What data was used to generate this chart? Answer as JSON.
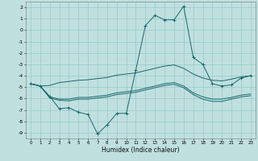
{
  "title": "",
  "xlabel": "Humidex (Indice chaleur)",
  "bg_color": "#c0e0e0",
  "grid_color": "#98c8c8",
  "line_color": "#1a6868",
  "xlim": [
    -0.5,
    23.5
  ],
  "ylim": [
    -9.5,
    2.5
  ],
  "yticks": [
    2,
    1,
    0,
    -1,
    -2,
    -3,
    -4,
    -5,
    -6,
    -7,
    -8,
    -9
  ],
  "xticks": [
    0,
    1,
    2,
    3,
    4,
    5,
    6,
    7,
    8,
    9,
    10,
    11,
    12,
    13,
    14,
    15,
    16,
    17,
    18,
    19,
    20,
    21,
    22,
    23
  ],
  "line1_x": [
    0,
    1,
    2,
    3,
    4,
    5,
    6,
    7,
    8,
    9,
    10,
    11,
    12,
    13,
    14,
    15,
    16,
    17,
    18,
    19,
    20,
    21,
    22,
    23
  ],
  "line1_y": [
    -4.7,
    -4.9,
    -4.85,
    -4.6,
    -4.5,
    -4.4,
    -4.35,
    -4.25,
    -4.15,
    -3.95,
    -3.85,
    -3.75,
    -3.55,
    -3.35,
    -3.15,
    -3.05,
    -3.35,
    -3.85,
    -4.2,
    -4.4,
    -4.45,
    -4.3,
    -4.1,
    -4.0
  ],
  "line2_x": [
    0,
    1,
    2,
    3,
    4,
    5,
    6,
    7,
    8,
    9,
    10,
    11,
    12,
    13,
    14,
    15,
    16,
    17,
    18,
    19,
    20,
    21,
    22,
    23
  ],
  "line2_y": [
    -4.7,
    -4.9,
    -5.8,
    -6.9,
    -6.8,
    -7.2,
    -7.4,
    -9.1,
    -8.3,
    -7.3,
    -7.3,
    -3.5,
    0.4,
    1.3,
    0.9,
    0.9,
    2.1,
    -2.4,
    -3.0,
    -4.7,
    -4.9,
    -4.8,
    -4.2,
    -4.0
  ],
  "line3_x": [
    0,
    1,
    2,
    3,
    4,
    5,
    6,
    7,
    8,
    9,
    10,
    11,
    12,
    13,
    14,
    15,
    16,
    17,
    18,
    19,
    20,
    21,
    22,
    23
  ],
  "line3_y": [
    -4.7,
    -4.9,
    -5.85,
    -6.05,
    -6.05,
    -5.9,
    -5.9,
    -5.8,
    -5.7,
    -5.5,
    -5.4,
    -5.3,
    -5.1,
    -4.9,
    -4.7,
    -4.6,
    -4.9,
    -5.5,
    -5.85,
    -6.05,
    -6.05,
    -5.9,
    -5.7,
    -5.6
  ],
  "line4_x": [
    0,
    1,
    2,
    3,
    4,
    5,
    6,
    7,
    8,
    9,
    10,
    11,
    12,
    13,
    14,
    15,
    16,
    17,
    18,
    19,
    20,
    21,
    22,
    23
  ],
  "line4_y": [
    -4.7,
    -4.9,
    -5.95,
    -6.15,
    -6.2,
    -6.05,
    -6.05,
    -5.95,
    -5.85,
    -5.65,
    -5.55,
    -5.45,
    -5.25,
    -5.05,
    -4.85,
    -4.75,
    -5.05,
    -5.65,
    -6.05,
    -6.25,
    -6.25,
    -6.05,
    -5.85,
    -5.75
  ]
}
